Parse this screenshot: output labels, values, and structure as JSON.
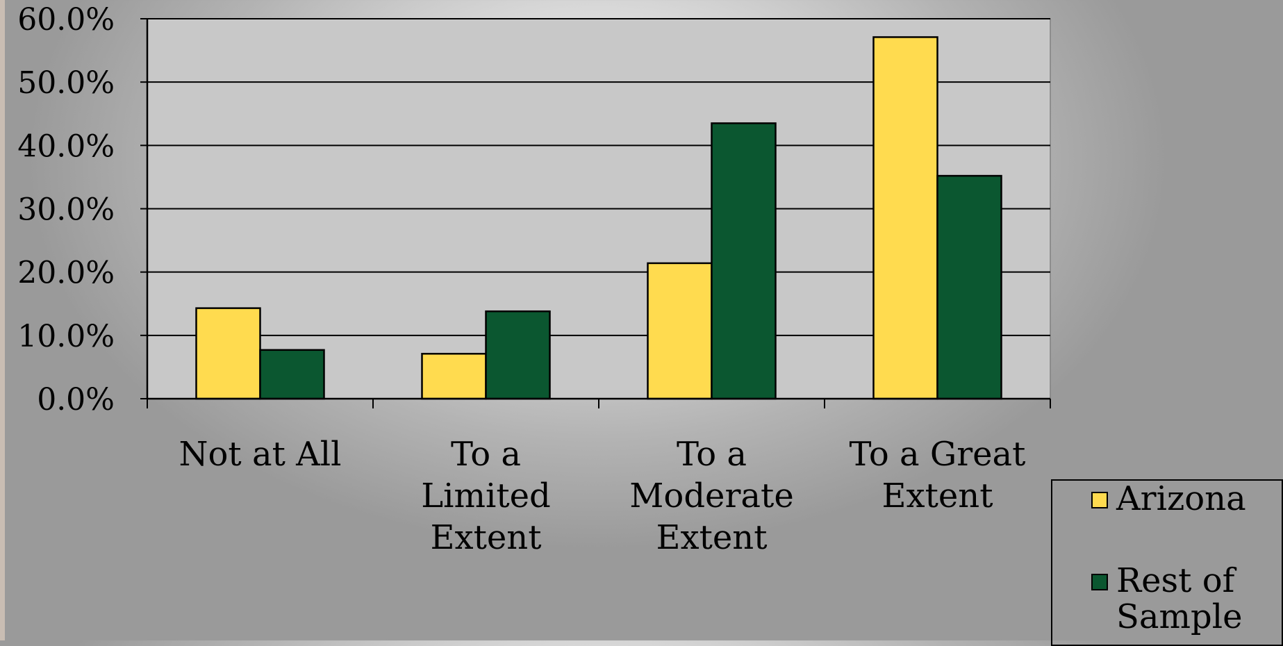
{
  "chart_data": {
    "type": "bar",
    "categories": [
      "Not at All",
      "To a Limited Extent",
      "To a Moderate Extent",
      "To a Great Extent"
    ],
    "category_lines": [
      [
        "Not at All"
      ],
      [
        "To a",
        "Limited",
        "Extent"
      ],
      [
        "To a",
        "Moderate",
        "Extent"
      ],
      [
        "To a Great",
        "Extent"
      ]
    ],
    "series": [
      {
        "name": "Arizona",
        "values": [
          14.3,
          7.1,
          21.4,
          57.1
        ],
        "color": "#ffdb4f"
      },
      {
        "name": "Rest of Sample",
        "values": [
          7.7,
          13.8,
          43.5,
          35.2
        ],
        "color": "#0b5730"
      }
    ],
    "ylim": [
      0,
      60
    ],
    "y_ticks": [
      "0.0%",
      "10.0%",
      "20.0%",
      "30.0%",
      "40.0%",
      "50.0%",
      "60.0%"
    ],
    "grid": true,
    "legend_position": "bottom-right",
    "title": "",
    "xlabel": "",
    "ylabel": "",
    "plot_background": "#c8c8c8"
  },
  "legend": {
    "items": [
      {
        "label": "Arizona",
        "color": "#ffdb4f"
      },
      {
        "label": "Rest of Sample",
        "color": "#0b5730"
      }
    ]
  }
}
